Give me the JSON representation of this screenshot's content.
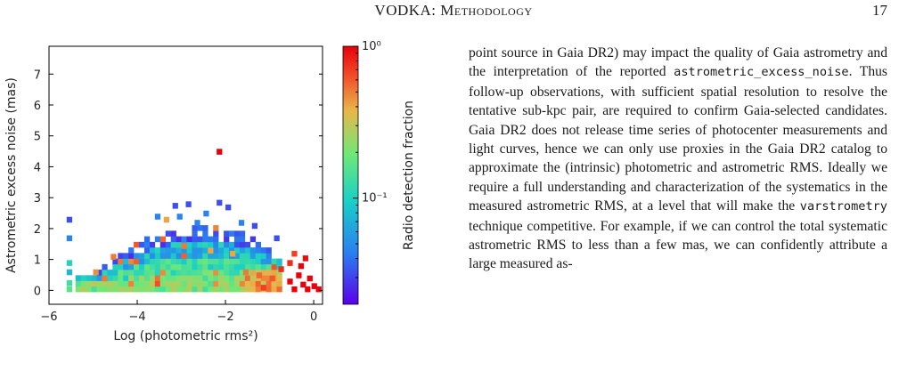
{
  "header": {
    "title": "VODKA: Methodology",
    "page_number": "17"
  },
  "body": {
    "t1": "point source in Gaia DR2) may impact the quality of Gaia astrometry and the interpretation of the reported ",
    "code1": "astrometric_excess_noise",
    "t2": ". Thus follow-up observations, with sufficient spatial resolution to resolve the tentative sub-kpc pair, are required to confirm Gaia-selected candidates. Gaia DR2 does not release time series of photocenter measurements and light curves, hence we can only use proxies in the Gaia DR2 catalog to approximate the (intrinsic) photometric and astrometric RMS. Ideally we require a full understanding and characterization of the systematics in the measured astrometric RMS, at a level that will make the ",
    "code2": "varstrometry",
    "t3": " technique competitive. For example, if we can control the total systematic astrometric RMS to less than a few mas, we can confidently attribute a large measured as-"
  },
  "chart_data": {
    "type": "heatmap",
    "xlabel": "Log (photometric rms²)",
    "ylabel": "Astrometric excess noise (mas)",
    "colorbar_label": "Radio detection fraction",
    "colorbar_scale": "log",
    "colorbar_range": [
      0.02,
      1
    ],
    "colorbar_ticks": [
      {
        "value": 1,
        "label": "10⁰"
      },
      {
        "value": 0.1,
        "label": "10⁻¹"
      }
    ],
    "xlim": [
      -6,
      0.2
    ],
    "ylim": [
      -0.45,
      7.9
    ],
    "xticks": [
      {
        "value": -6,
        "label": "−6"
      },
      {
        "value": -4,
        "label": "−4"
      },
      {
        "value": -2,
        "label": "−2"
      },
      {
        "value": 0,
        "label": "0"
      }
    ],
    "yticks": [
      {
        "value": 0,
        "label": "0"
      },
      {
        "value": 1,
        "label": "1"
      },
      {
        "value": 2,
        "label": "2"
      },
      {
        "value": 3,
        "label": "3"
      },
      {
        "value": 4,
        "label": "4"
      },
      {
        "value": 5,
        "label": "5"
      },
      {
        "value": 6,
        "label": "6"
      },
      {
        "value": 7,
        "label": "7"
      }
    ],
    "bin_width_x": 0.12,
    "bin_height_y": 0.18,
    "colormap": [
      "#5a00e8",
      "#2a7ff0",
      "#19d0c8",
      "#6ee878",
      "#e8b74a",
      "#f2502a",
      "#e8000a"
    ],
    "cells": [
      {
        "x": -2.2,
        "y": 4.4,
        "f": 1.0
      },
      {
        "x": -2.2,
        "y": 2.75,
        "f": 0.03
      },
      {
        "x": -2.0,
        "y": 2.6,
        "f": 0.03
      },
      {
        "x": -2.5,
        "y": 2.4,
        "f": 0.04
      },
      {
        "x": -2.9,
        "y": 2.7,
        "f": 0.03
      },
      {
        "x": -3.2,
        "y": 2.65,
        "f": 0.03
      },
      {
        "x": -3.1,
        "y": 2.3,
        "f": 0.04
      },
      {
        "x": -3.6,
        "y": 2.3,
        "f": 0.04
      },
      {
        "x": -3.4,
        "y": 2.2,
        "f": 0.3
      },
      {
        "x": -2.7,
        "y": 2.1,
        "f": 0.04
      },
      {
        "x": -1.7,
        "y": 2.1,
        "f": 0.04
      },
      {
        "x": -1.4,
        "y": 2.0,
        "f": 0.03
      },
      {
        "x": -0.9,
        "y": 1.6,
        "f": 0.03
      },
      {
        "x": -5.6,
        "y": 2.2,
        "f": 0.03
      },
      {
        "x": -5.6,
        "y": 1.6,
        "f": 0.04
      },
      {
        "x": -5.6,
        "y": 0.8,
        "f": 0.08
      },
      {
        "x": -5.6,
        "y": 0.5,
        "f": 0.06
      },
      {
        "x": -5.6,
        "y": 0.15,
        "f": 0.1
      },
      {
        "x": -5.6,
        "y": -0.05,
        "f": 0.12
      },
      {
        "x": -4.6,
        "y": 1.0,
        "f": 0.4
      },
      {
        "x": -3.0,
        "y": 1.35,
        "f": 0.4
      },
      {
        "x": -2.4,
        "y": 1.2,
        "f": 0.3
      },
      {
        "x": -1.9,
        "y": 1.1,
        "f": 0.3
      },
      {
        "x": -1.6,
        "y": 0.5,
        "f": 0.4
      },
      {
        "x": -1.3,
        "y": 0.4,
        "f": 0.45
      },
      {
        "x": -5.0,
        "y": 0.5,
        "f": 0.35
      },
      {
        "x": -4.8,
        "y": 0.3,
        "f": 0.4
      },
      {
        "x": -1.2,
        "y": 0.0,
        "f": 0.6
      },
      {
        "x": -1.0,
        "y": 0.3,
        "f": 0.5
      },
      {
        "x": -0.8,
        "y": 0.6,
        "f": 0.7
      },
      {
        "x": -0.6,
        "y": 0.8,
        "f": 0.7
      },
      {
        "x": -0.6,
        "y": 0.2,
        "f": 1.0
      },
      {
        "x": -0.5,
        "y": -0.05,
        "f": 1.0
      },
      {
        "x": -0.4,
        "y": 0.4,
        "f": 1.0
      },
      {
        "x": -0.3,
        "y": 0.1,
        "f": 1.0
      },
      {
        "x": -0.2,
        "y": -0.05,
        "f": 1.0
      },
      {
        "x": -0.15,
        "y": 0.3,
        "f": 1.0
      },
      {
        "x": -0.35,
        "y": 0.7,
        "f": 1.0
      },
      {
        "x": -0.25,
        "y": 0.95,
        "f": 0.9
      },
      {
        "x": -0.05,
        "y": 0.05,
        "f": 1.0
      },
      {
        "x": 0.05,
        "y": -0.05,
        "f": 1.0
      },
      {
        "x": -0.5,
        "y": 1.1,
        "f": 0.6
      }
    ],
    "cloud": {
      "x_range": [
        -5.4,
        -0.8
      ],
      "peak_x": -2.6,
      "peak_height": 2.0,
      "base_height": 0.55
    }
  }
}
